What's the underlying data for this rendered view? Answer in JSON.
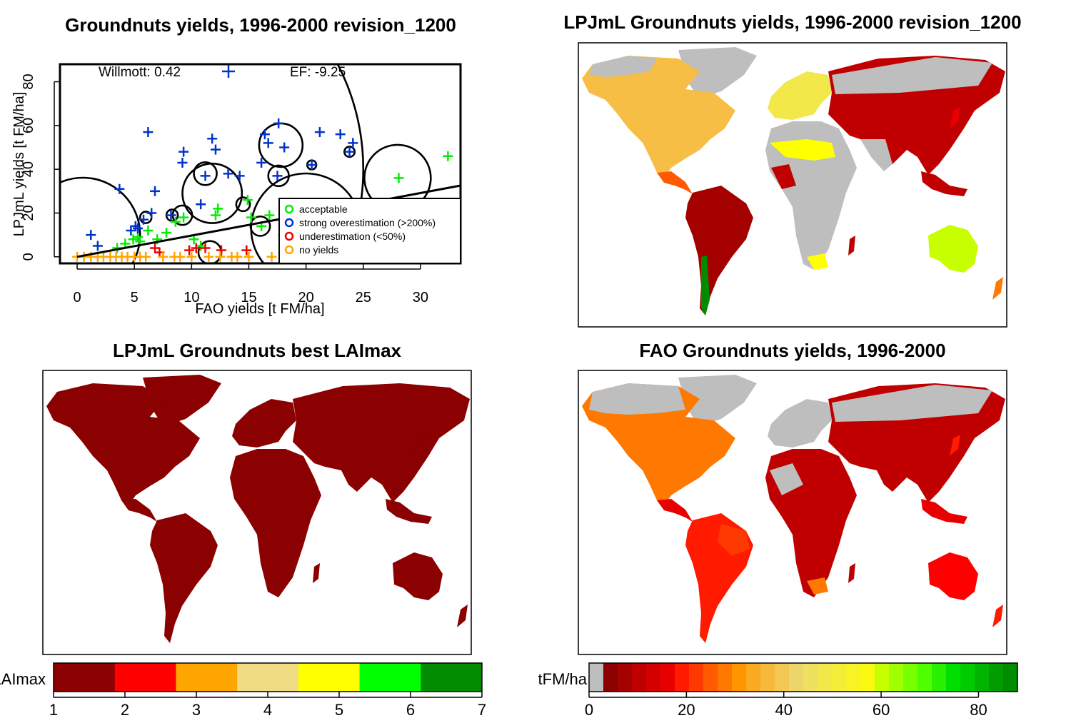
{
  "colors": {
    "acceptable": "#00ee00",
    "overestimation": "#0033cc",
    "underestimation": "#ee0000",
    "no_yields": "#ffa500",
    "map_grey": "#bebebe",
    "dark_red": "#8b0000"
  },
  "chart_data": [
    {
      "type": "scatter",
      "title": "Groundnuts yields, 1996-2000 revision_1200",
      "xlabel": "FAO yields [t FM/ha]",
      "ylabel": "LPJmL yields [t FM/ha]",
      "xlim": [
        -1.5,
        33.5
      ],
      "ylim": [
        -3,
        88
      ],
      "x_ticks": [
        "0",
        "5",
        "10",
        "15",
        "20",
        "25",
        "30"
      ],
      "y_ticks": [
        "0",
        "20",
        "40",
        "60",
        "80"
      ],
      "stats": {
        "willmott": "Willmott: 0.42",
        "ef": "EF: -9.25"
      },
      "legend": {
        "placement": "bottom-right",
        "items": [
          {
            "label": "acceptable",
            "key": "acceptable"
          },
          {
            "label": "strong overestimation (>200%)",
            "key": "overestimation"
          },
          {
            "label": "underestimation (<50%)",
            "key": "underestimation"
          },
          {
            "label": "no yields",
            "key": "no_yields"
          }
        ]
      },
      "regression_line": {
        "x": [
          0,
          35
        ],
        "y": [
          0,
          34
        ]
      },
      "bubbles": [
        {
          "x": 5,
          "y": 40,
          "r": 20
        },
        {
          "x": 0.5,
          "y": 10,
          "r": 5
        },
        {
          "x": 11.8,
          "y": 29,
          "r": 2.6
        },
        {
          "x": 17.8,
          "y": 51,
          "r": 1.9
        },
        {
          "x": 28,
          "y": 36,
          "r": 2.9
        },
        {
          "x": 20,
          "y": 13,
          "r": 4.8
        },
        {
          "x": 16,
          "y": 14,
          "r": 0.85
        },
        {
          "x": 17.6,
          "y": 37,
          "r": 0.9
        },
        {
          "x": 11.2,
          "y": 38,
          "r": 1
        },
        {
          "x": 9.2,
          "y": 19,
          "r": 0.85
        },
        {
          "x": 14.5,
          "y": 24,
          "r": 0.6
        },
        {
          "x": 11.6,
          "y": 2,
          "r": 1
        },
        {
          "x": 6,
          "y": 18,
          "r": 0.5
        },
        {
          "x": 8.3,
          "y": 19,
          "r": 0.5
        },
        {
          "x": 23.8,
          "y": 48,
          "r": 0.45
        },
        {
          "x": 20.5,
          "y": 42,
          "r": 0.4
        }
      ],
      "series": [
        {
          "name": "acceptable",
          "x": [
            3.5,
            4.2,
            4.9,
            5.3,
            5.5,
            6.2,
            7.0,
            7.8,
            8.6,
            9.3,
            10.2,
            10.8,
            12.1,
            12.3,
            14.9,
            15.2,
            16.1,
            16.8,
            18.0,
            28.1,
            32.4
          ],
          "y": [
            4,
            6,
            8,
            9,
            7,
            12,
            8,
            11,
            16,
            18,
            8,
            5,
            19,
            22,
            26,
            18,
            14,
            19,
            10,
            36,
            46
          ]
        },
        {
          "name": "strong overestimation (>200%)",
          "x": [
            1.2,
            1.8,
            3.7,
            4.7,
            5.1,
            5.3,
            5.8,
            6.2,
            6.5,
            6.8,
            8.2,
            9.2,
            9.3,
            10.8,
            11.2,
            11.8,
            12.1,
            13.2,
            14.2,
            16.1,
            16.4,
            16.7,
            17.5,
            17.6,
            18.1,
            20.5,
            21.2,
            23.0,
            23.8,
            24.1
          ],
          "y": [
            10,
            5,
            31,
            12,
            14,
            13,
            17,
            57,
            20,
            30,
            19,
            43,
            48,
            24,
            37,
            54,
            49,
            38,
            37,
            43,
            56,
            52,
            37,
            61,
            50,
            42,
            57,
            56,
            48,
            52
          ]
        },
        {
          "name": "underestimation (<50%)",
          "x": [
            6.8,
            7.2,
            9.8,
            10.4,
            11.2,
            12.6,
            14.8
          ],
          "y": [
            4,
            2,
            3,
            4,
            4,
            3,
            3
          ]
        },
        {
          "name": "no yields",
          "x": [
            0,
            0.6,
            1.2,
            1.8,
            2.3,
            2.9,
            3.4,
            3.9,
            4.4,
            5.0,
            5.5,
            6.0,
            7.5,
            8.5,
            9.0,
            10.0,
            11.5,
            12.5,
            13.5,
            14.0,
            15.0,
            17.0,
            19.5
          ],
          "y": [
            0,
            0,
            0,
            0,
            0,
            0,
            0,
            0,
            0,
            0,
            0,
            0,
            0,
            0,
            0,
            0,
            0,
            0,
            0,
            0,
            0,
            0,
            0
          ]
        }
      ]
    },
    {
      "type": "heatmap",
      "title": "LPJmL Groundnuts yields, 1996-2000 revision_1200",
      "colorbar_ref": "yields"
    },
    {
      "type": "heatmap",
      "title": "LPJmL Groundnuts best LAImax",
      "colorbar": {
        "label": "LAImax",
        "colors": [
          "#8b0000",
          "#ff0000",
          "#ffa500",
          "#f0dc82",
          "#ffff00",
          "#00ff00",
          "#008b00"
        ],
        "ticks": [
          "1",
          "2",
          "3",
          "4",
          "5",
          "6",
          "7"
        ],
        "range": [
          1,
          7
        ]
      }
    },
    {
      "type": "heatmap",
      "title": "FAO Groundnuts yields, 1996-2000",
      "colorbar": {
        "label": "tFM/ha",
        "range": [
          0,
          88
        ],
        "ticks": [
          "0",
          "20",
          "40",
          "60",
          "80"
        ],
        "tick_values": [
          0,
          20,
          40,
          60,
          80
        ],
        "colors": [
          "#bebebe",
          "#8b0000",
          "#a50000",
          "#c00000",
          "#d40000",
          "#e80000",
          "#ff1a00",
          "#ff3a00",
          "#ff5a00",
          "#ff7800",
          "#ff9600",
          "#f9aa20",
          "#f6b93a",
          "#f2c754",
          "#eed56a",
          "#efe060",
          "#f2e84a",
          "#f5ee38",
          "#f8f325",
          "#fbf812",
          "#c8ff00",
          "#a0ff00",
          "#78ff00",
          "#50ff00",
          "#28f000",
          "#00e000",
          "#00cc00",
          "#00b400",
          "#009c00",
          "#008b00"
        ]
      }
    }
  ]
}
